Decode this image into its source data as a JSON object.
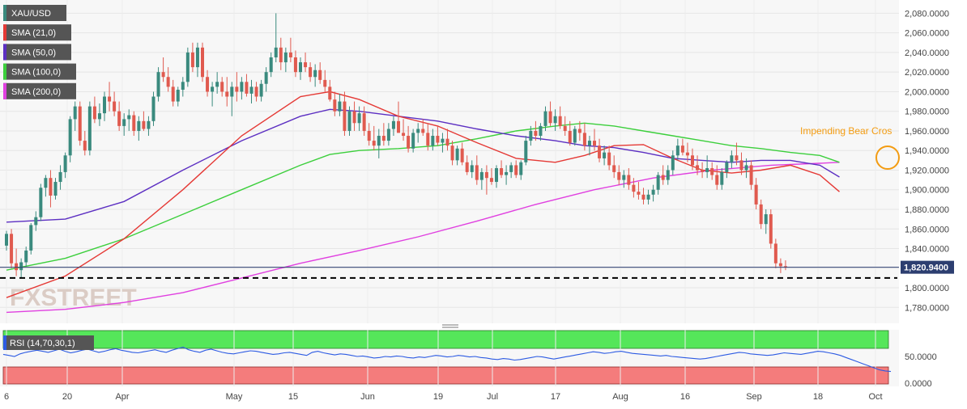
{
  "chart_data": {
    "type": "candlestick",
    "symbol": "XAU/USD",
    "legend": [
      {
        "label": "XAU/USD",
        "color": "#3a8a7e"
      },
      {
        "label": "SMA (21,0)",
        "color": "#e53935"
      },
      {
        "label": "SMA (50,0)",
        "color": "#5c2fc2"
      },
      {
        "label": "SMA (100,0)",
        "color": "#3ccf3c"
      },
      {
        "label": "SMA (200,0)",
        "color": "#e040e0"
      }
    ],
    "y_ticks": [
      "2,080.0000",
      "2,060.0000",
      "2,040.0000",
      "2,020.0000",
      "2,000.0000",
      "1,980.0000",
      "1,960.0000",
      "1,940.0000",
      "1,920.0000",
      "1,900.0000",
      "1,880.0000",
      "1,860.0000",
      "1,840.0000",
      "1,820.0000",
      "1,800.0000",
      "1,780.0000"
    ],
    "ylim": [
      1767,
      2093
    ],
    "x_ticks": [
      "6",
      "20",
      "Apr",
      "May",
      "15",
      "Jun",
      "19",
      "Jul",
      "17",
      "Aug",
      "16",
      "Sep",
      "18",
      "Oct"
    ],
    "last_price": 1820.94,
    "last_price_label": "1,820.9400",
    "support_level": 1810,
    "annotation": "Impending Bear Cros",
    "watermark": "FXSTREET",
    "colors": {
      "up": "#3a8a7e",
      "down": "#e05a4f",
      "sma21": "#e53935",
      "sma50": "#5c2fc2",
      "sma100": "#3ccf3c",
      "sma200": "#e040e0",
      "annotation": "#f39c12"
    },
    "candles": [
      [
        1843,
        1858,
        1838,
        1855
      ],
      [
        1855,
        1860,
        1820,
        1825
      ],
      [
        1825,
        1840,
        1812,
        1818
      ],
      [
        1818,
        1830,
        1810,
        1826
      ],
      [
        1826,
        1842,
        1822,
        1838
      ],
      [
        1838,
        1866,
        1834,
        1864
      ],
      [
        1864,
        1878,
        1858,
        1872
      ],
      [
        1872,
        1906,
        1868,
        1902
      ],
      [
        1902,
        1915,
        1893,
        1912
      ],
      [
        1912,
        1920,
        1882,
        1894
      ],
      [
        1894,
        1912,
        1890,
        1908
      ],
      [
        1908,
        1925,
        1900,
        1918
      ],
      [
        1918,
        1938,
        1912,
        1935
      ],
      [
        1935,
        1975,
        1928,
        1972
      ],
      [
        1972,
        1990,
        1960,
        1985
      ],
      [
        1985,
        1990,
        1945,
        1950
      ],
      [
        1950,
        1960,
        1935,
        1940
      ],
      [
        1940,
        1990,
        1935,
        1985
      ],
      [
        1985,
        1995,
        1968,
        1972
      ],
      [
        1972,
        1988,
        1965,
        1978
      ],
      [
        1978,
        2000,
        1970,
        1995
      ],
      [
        1995,
        2010,
        1980,
        1990
      ],
      [
        1990,
        2000,
        1975,
        1980
      ],
      [
        1980,
        1990,
        1960,
        1965
      ],
      [
        1965,
        1978,
        1955,
        1972
      ],
      [
        1972,
        1982,
        1960,
        1976
      ],
      [
        1976,
        1980,
        1955,
        1960
      ],
      [
        1960,
        1975,
        1950,
        1970
      ],
      [
        1970,
        1980,
        1960,
        1962
      ],
      [
        1962,
        1975,
        1955,
        1970
      ],
      [
        1970,
        2000,
        1965,
        1995
      ],
      [
        1995,
        2025,
        1990,
        2020
      ],
      [
        2020,
        2035,
        2010,
        2015
      ],
      [
        2015,
        2025,
        2000,
        2005
      ],
      [
        2005,
        2012,
        1985,
        1990
      ],
      [
        1990,
        2005,
        1985,
        2002
      ],
      [
        2002,
        2015,
        1995,
        2010
      ],
      [
        2010,
        2045,
        2005,
        2040
      ],
      [
        2040,
        2050,
        2020,
        2025
      ],
      [
        2025,
        2050,
        2015,
        2045
      ],
      [
        2045,
        2050,
        2010,
        2015
      ],
      [
        2015,
        2022,
        1995,
        2000
      ],
      [
        2000,
        2010,
        1985,
        2005
      ],
      [
        2005,
        2020,
        1998,
        2010
      ],
      [
        2010,
        2015,
        1995,
        2000
      ],
      [
        2000,
        2015,
        1985,
        1995
      ],
      [
        1995,
        2010,
        1975,
        2005
      ],
      [
        2005,
        2020,
        1990,
        2000
      ],
      [
        2000,
        2015,
        1992,
        2010
      ],
      [
        2010,
        2018,
        1995,
        1998
      ],
      [
        1998,
        2012,
        1988,
        2005
      ],
      [
        2005,
        2010,
        1990,
        1995
      ],
      [
        1995,
        2012,
        1990,
        2008
      ],
      [
        2008,
        2025,
        2000,
        2020
      ],
      [
        2020,
        2040,
        2015,
        2035
      ],
      [
        2035,
        2080,
        2030,
        2045
      ],
      [
        2045,
        2055,
        2022,
        2030
      ],
      [
        2030,
        2045,
        2020,
        2040
      ],
      [
        2040,
        2055,
        2030,
        2035
      ],
      [
        2035,
        2042,
        2015,
        2020
      ],
      [
        2020,
        2035,
        2012,
        2030
      ],
      [
        2030,
        2040,
        2020,
        2025
      ],
      [
        2025,
        2030,
        2010,
        2015
      ],
      [
        2015,
        2028,
        2005,
        2022
      ],
      [
        2022,
        2030,
        2008,
        2012
      ],
      [
        2012,
        2022,
        2000,
        2005
      ],
      [
        2005,
        2012,
        1990,
        1992
      ],
      [
        1992,
        2000,
        1975,
        1980
      ],
      [
        1980,
        1998,
        1975,
        1990
      ],
      [
        1990,
        2000,
        1955,
        1960
      ],
      [
        1960,
        1985,
        1955,
        1980
      ],
      [
        1980,
        1990,
        1960,
        1968
      ],
      [
        1968,
        1985,
        1960,
        1978
      ],
      [
        1978,
        1985,
        1955,
        1960
      ],
      [
        1960,
        1968,
        1945,
        1950
      ],
      [
        1950,
        1965,
        1940,
        1945
      ],
      [
        1945,
        1962,
        1932,
        1955
      ],
      [
        1955,
        1968,
        1945,
        1950
      ],
      [
        1950,
        1968,
        1945,
        1962
      ],
      [
        1962,
        1975,
        1955,
        1970
      ],
      [
        1970,
        1990,
        1960,
        1958
      ],
      [
        1958,
        1972,
        1950,
        1955
      ],
      [
        1955,
        1965,
        1938,
        1942
      ],
      [
        1942,
        1962,
        1938,
        1958
      ],
      [
        1958,
        1968,
        1948,
        1962
      ],
      [
        1962,
        1972,
        1955,
        1958
      ],
      [
        1958,
        1968,
        1940,
        1945
      ],
      [
        1945,
        1962,
        1940,
        1955
      ],
      [
        1955,
        1965,
        1945,
        1948
      ],
      [
        1948,
        1958,
        1938,
        1952
      ],
      [
        1952,
        1962,
        1940,
        1945
      ],
      [
        1945,
        1950,
        1925,
        1930
      ],
      [
        1930,
        1945,
        1925,
        1942
      ],
      [
        1942,
        1948,
        1925,
        1928
      ],
      [
        1928,
        1935,
        1915,
        1918
      ],
      [
        1918,
        1930,
        1912,
        1925
      ],
      [
        1925,
        1935,
        1905,
        1910
      ],
      [
        1910,
        1922,
        1900,
        1918
      ],
      [
        1918,
        1925,
        1895,
        1912
      ],
      [
        1912,
        1922,
        1905,
        1908
      ],
      [
        1908,
        1925,
        1902,
        1922
      ],
      [
        1922,
        1930,
        1912,
        1915
      ],
      [
        1915,
        1925,
        1905,
        1918
      ],
      [
        1918,
        1928,
        1912,
        1925
      ],
      [
        1925,
        1930,
        1912,
        1915
      ],
      [
        1915,
        1930,
        1910,
        1928
      ],
      [
        1928,
        1955,
        1925,
        1950
      ],
      [
        1950,
        1965,
        1945,
        1960
      ],
      [
        1960,
        1970,
        1950,
        1955
      ],
      [
        1955,
        1968,
        1950,
        1965
      ],
      [
        1965,
        1985,
        1960,
        1980
      ],
      [
        1980,
        1990,
        1965,
        1968
      ],
      [
        1968,
        1982,
        1960,
        1975
      ],
      [
        1975,
        1985,
        1962,
        1965
      ],
      [
        1965,
        1975,
        1955,
        1960
      ],
      [
        1960,
        1970,
        1945,
        1948
      ],
      [
        1948,
        1965,
        1945,
        1962
      ],
      [
        1962,
        1970,
        1950,
        1958
      ],
      [
        1958,
        1968,
        1940,
        1945
      ],
      [
        1945,
        1955,
        1935,
        1950
      ],
      [
        1950,
        1962,
        1940,
        1945
      ],
      [
        1945,
        1952,
        1928,
        1932
      ],
      [
        1932,
        1945,
        1925,
        1938
      ],
      [
        1938,
        1945,
        1920,
        1925
      ],
      [
        1925,
        1935,
        1912,
        1918
      ],
      [
        1918,
        1925,
        1905,
        1910
      ],
      [
        1910,
        1920,
        1902,
        1915
      ],
      [
        1915,
        1922,
        1900,
        1905
      ],
      [
        1905,
        1912,
        1892,
        1898
      ],
      [
        1898,
        1908,
        1890,
        1895
      ],
      [
        1895,
        1902,
        1885,
        1890
      ],
      [
        1890,
        1900,
        1885,
        1895
      ],
      [
        1895,
        1905,
        1888,
        1900
      ],
      [
        1900,
        1918,
        1895,
        1915
      ],
      [
        1915,
        1925,
        1905,
        1910
      ],
      [
        1910,
        1925,
        1905,
        1920
      ],
      [
        1920,
        1940,
        1915,
        1935
      ],
      [
        1935,
        1952,
        1930,
        1945
      ],
      [
        1945,
        1952,
        1935,
        1938
      ],
      [
        1938,
        1948,
        1928,
        1935
      ],
      [
        1935,
        1942,
        1920,
        1925
      ],
      [
        1925,
        1935,
        1915,
        1920
      ],
      [
        1920,
        1928,
        1912,
        1918
      ],
      [
        1918,
        1935,
        1912,
        1922
      ],
      [
        1922,
        1928,
        1910,
        1915
      ],
      [
        1915,
        1925,
        1900,
        1905
      ],
      [
        1905,
        1922,
        1900,
        1918
      ],
      [
        1918,
        1930,
        1912,
        1928
      ],
      [
        1928,
        1940,
        1922,
        1935
      ],
      [
        1935,
        1948,
        1925,
        1930
      ],
      [
        1930,
        1938,
        1915,
        1920
      ],
      [
        1920,
        1932,
        1912,
        1925
      ],
      [
        1925,
        1930,
        1900,
        1905
      ],
      [
        1905,
        1912,
        1880,
        1885
      ],
      [
        1885,
        1890,
        1860,
        1865
      ],
      [
        1865,
        1880,
        1855,
        1875
      ],
      [
        1875,
        1880,
        1840,
        1845
      ],
      [
        1845,
        1850,
        1820,
        1825
      ],
      [
        1825,
        1830,
        1815,
        1822
      ],
      [
        1822,
        1828,
        1818,
        1821
      ]
    ],
    "sma21": [
      [
        0,
        1790
      ],
      [
        12,
        1812
      ],
      [
        24,
        1850
      ],
      [
        36,
        1900
      ],
      [
        48,
        1955
      ],
      [
        60,
        1995
      ],
      [
        66,
        2000
      ],
      [
        72,
        1992
      ],
      [
        80,
        1975
      ],
      [
        88,
        1965
      ],
      [
        96,
        1948
      ],
      [
        104,
        1932
      ],
      [
        112,
        1928
      ],
      [
        118,
        1935
      ],
      [
        124,
        1945
      ],
      [
        130,
        1946
      ],
      [
        136,
        1932
      ],
      [
        142,
        1920
      ],
      [
        148,
        1917
      ],
      [
        154,
        1920
      ],
      [
        160,
        1925
      ],
      [
        166,
        1915
      ],
      [
        170,
        1898
      ]
    ],
    "sma50": [
      [
        0,
        1867
      ],
      [
        12,
        1870
      ],
      [
        24,
        1888
      ],
      [
        36,
        1920
      ],
      [
        48,
        1950
      ],
      [
        60,
        1975
      ],
      [
        66,
        1982
      ],
      [
        72,
        1980
      ],
      [
        80,
        1975
      ],
      [
        88,
        1970
      ],
      [
        96,
        1962
      ],
      [
        104,
        1955
      ],
      [
        112,
        1950
      ],
      [
        118,
        1945
      ],
      [
        124,
        1943
      ],
      [
        130,
        1938
      ],
      [
        136,
        1932
      ],
      [
        142,
        1930
      ],
      [
        148,
        1928
      ],
      [
        154,
        1930
      ],
      [
        160,
        1930
      ],
      [
        166,
        1925
      ],
      [
        170,
        1913
      ]
    ],
    "sma100": [
      [
        0,
        1818
      ],
      [
        12,
        1830
      ],
      [
        24,
        1850
      ],
      [
        36,
        1875
      ],
      [
        48,
        1900
      ],
      [
        60,
        1925
      ],
      [
        66,
        1936
      ],
      [
        72,
        1940
      ],
      [
        80,
        1942
      ],
      [
        88,
        1945
      ],
      [
        96,
        1952
      ],
      [
        104,
        1960
      ],
      [
        112,
        1965
      ],
      [
        118,
        1968
      ],
      [
        124,
        1965
      ],
      [
        130,
        1960
      ],
      [
        136,
        1955
      ],
      [
        142,
        1950
      ],
      [
        148,
        1945
      ],
      [
        154,
        1942
      ],
      [
        160,
        1938
      ],
      [
        166,
        1935
      ],
      [
        170,
        1928
      ]
    ],
    "sma200": [
      [
        0,
        1775
      ],
      [
        12,
        1778
      ],
      [
        24,
        1785
      ],
      [
        36,
        1795
      ],
      [
        48,
        1810
      ],
      [
        60,
        1825
      ],
      [
        72,
        1838
      ],
      [
        84,
        1852
      ],
      [
        96,
        1868
      ],
      [
        108,
        1885
      ],
      [
        120,
        1900
      ],
      [
        132,
        1912
      ],
      [
        144,
        1920
      ],
      [
        156,
        1925
      ],
      [
        166,
        1927
      ],
      [
        170,
        1928
      ]
    ],
    "rsi": {
      "label": "RSI (14,70,30,1)",
      "tick_labels": [
        "50.0000",
        "0.0000"
      ],
      "overbought": 70,
      "oversold": 30,
      "values": [
        54,
        52,
        50,
        55,
        58,
        60,
        62,
        60,
        58,
        61,
        64,
        60,
        57,
        59,
        62,
        64,
        61,
        58,
        60,
        63,
        65,
        62,
        60,
        58,
        57,
        59,
        61,
        63,
        60,
        58,
        62,
        65,
        68,
        63,
        60,
        58,
        62,
        64,
        61,
        58,
        56,
        55,
        57,
        59,
        61,
        60,
        58,
        56,
        54,
        55,
        57,
        58,
        56,
        54,
        52,
        58,
        60,
        57,
        55,
        53,
        55,
        54,
        52,
        50,
        51,
        49,
        47,
        48,
        50,
        49,
        51,
        50,
        48,
        47,
        49,
        48,
        50,
        52,
        51,
        49,
        50,
        52,
        51,
        49,
        50,
        48,
        47,
        45,
        44,
        46,
        45,
        43,
        44,
        46,
        48,
        50,
        49,
        47,
        45,
        47,
        49,
        51,
        53,
        55,
        57,
        59,
        58,
        56,
        57,
        59,
        60,
        58,
        56,
        55,
        54,
        53,
        52,
        51,
        52,
        50,
        49,
        48,
        47,
        46,
        45,
        46,
        48,
        50,
        52,
        54,
        56,
        58,
        57,
        55,
        54,
        53,
        52,
        53,
        55,
        57,
        56,
        55,
        54,
        56,
        58,
        60,
        59,
        57,
        55,
        52,
        48,
        44,
        40,
        36,
        32,
        28,
        24,
        22,
        21
      ]
    }
  }
}
